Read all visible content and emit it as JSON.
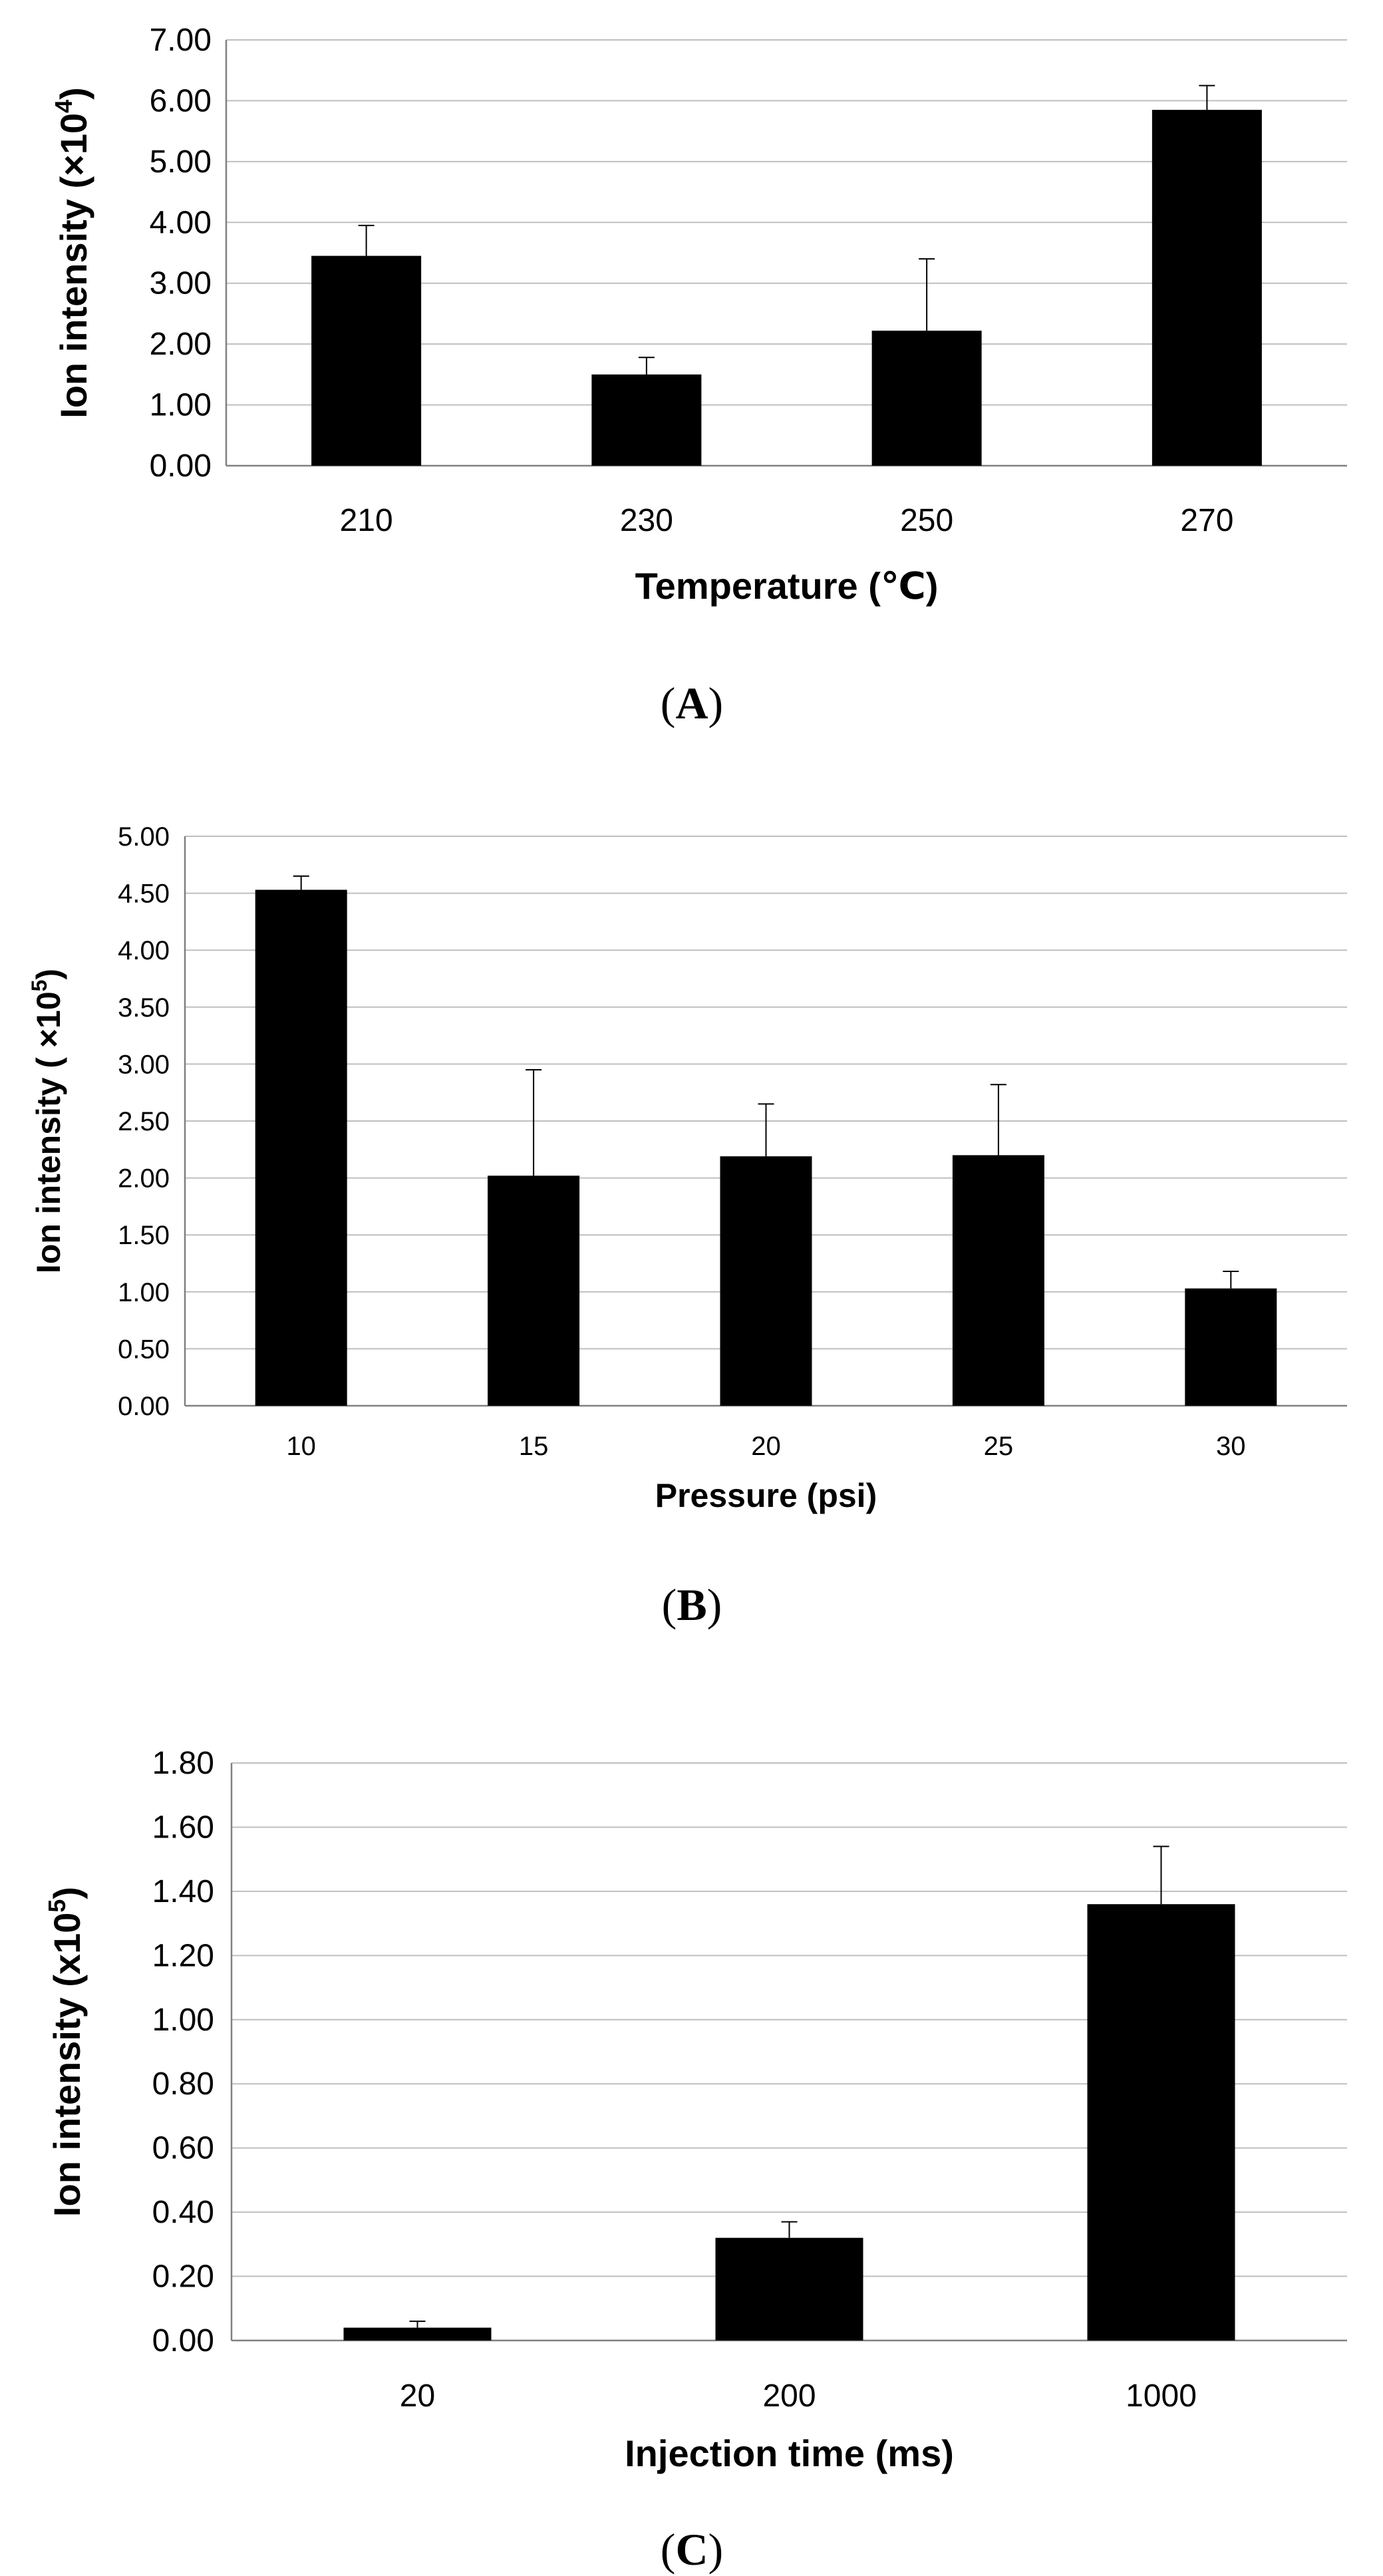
{
  "colors": {
    "bar": "#000000",
    "grid": "#bfbfbf",
    "axis": "#808080",
    "text": "#000000",
    "background": "#ffffff"
  },
  "chart_data": [
    {
      "type": "bar",
      "panel": "A",
      "caption": {
        "open": "(",
        "letter": "A",
        "close": ")"
      },
      "title": "",
      "xlabel": "Temperature (℃)",
      "ylabel": {
        "base": "Ion intensity (",
        "mult": "×10",
        "exp": "4",
        "close": ")"
      },
      "categories": [
        "210",
        "230",
        "250",
        "270"
      ],
      "values": [
        3.45,
        1.5,
        2.22,
        5.85
      ],
      "errors": [
        0.5,
        0.28,
        1.18,
        0.4
      ],
      "ylim": [
        0,
        7
      ],
      "yticks": [
        "0.00",
        "1.00",
        "2.00",
        "3.00",
        "4.00",
        "5.00",
        "6.00",
        "7.00"
      ],
      "grid": true
    },
    {
      "type": "bar",
      "panel": "B",
      "caption": {
        "open": "(",
        "letter": "B",
        "close": ")"
      },
      "title": "",
      "xlabel": "Pressure (psi)",
      "ylabel": {
        "base": "Ion intensity ( ",
        "mult": "×10",
        "exp": "5",
        "close": ")"
      },
      "categories": [
        "10",
        "15",
        "20",
        "25",
        "30"
      ],
      "values": [
        4.53,
        2.02,
        2.19,
        2.2,
        1.03
      ],
      "errors": [
        0.12,
        0.93,
        0.46,
        0.62,
        0.15
      ],
      "ylim": [
        0,
        5
      ],
      "yticks": [
        "0.00",
        "0.50",
        "1.00",
        "1.50",
        "2.00",
        "2.50",
        "3.00",
        "3.50",
        "4.00",
        "4.50",
        "5.00"
      ],
      "grid": true
    },
    {
      "type": "bar",
      "panel": "C",
      "caption": {
        "open": "(",
        "letter": "C",
        "close": ")"
      },
      "title": "",
      "xlabel": "Injection time (ms)",
      "ylabel": {
        "base": "Ion intensity (",
        "mult": "x10",
        "exp": "5",
        "close": ")"
      },
      "categories": [
        "20",
        "200",
        "1000"
      ],
      "values": [
        0.04,
        0.32,
        1.36
      ],
      "errors": [
        0.02,
        0.05,
        0.18
      ],
      "ylim": [
        0,
        1.8
      ],
      "yticks": [
        "0.00",
        "0.20",
        "0.40",
        "0.60",
        "0.80",
        "1.00",
        "1.20",
        "1.40",
        "1.60",
        "1.80"
      ],
      "grid": true
    }
  ]
}
